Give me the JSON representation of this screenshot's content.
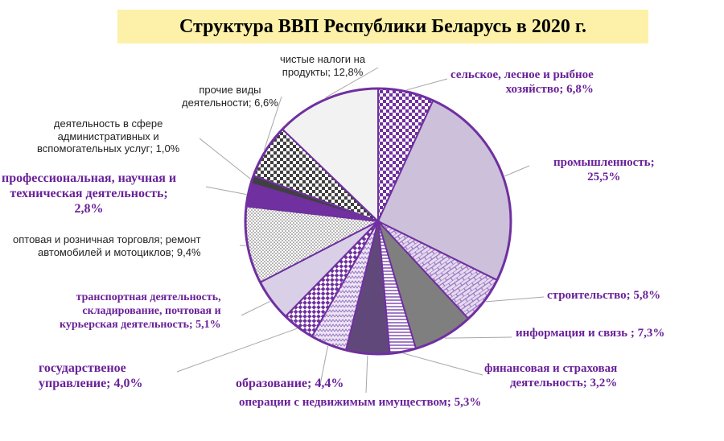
{
  "title": "Структура ВВП Республики Беларусь  в 2020 г.",
  "chart_data": {
    "type": "pie",
    "title": "Структура ВВП Республики Беларусь  в 2020 г.",
    "unit": "%",
    "slices": [
      {
        "label_lines": [
          "сельское, лесное и рыбное",
          "хозяйство; 6,8%"
        ],
        "value": 6.8,
        "color": "#7030a0",
        "fill": "checker"
      },
      {
        "label_lines": [
          "промышленность;",
          "25,5%"
        ],
        "value": 25.5,
        "color": "#ccc0da",
        "fill": "solid"
      },
      {
        "label_lines": [
          "строительство; 5,8%"
        ],
        "value": 5.8,
        "color": "#b494cf",
        "fill": "brick"
      },
      {
        "label_lines": [
          "информация и связь ; 7,3%"
        ],
        "value": 7.3,
        "color": "#7f7f7f",
        "fill": "solid"
      },
      {
        "label_lines": [
          "финансовая и страховая",
          "деятельность; 3,2%"
        ],
        "value": 3.2,
        "color": "#a880c8",
        "fill": "hlines"
      },
      {
        "label_lines": [
          "операции с недвижимым имуществом; 5,3%"
        ],
        "value": 5.3,
        "color": "#60497a",
        "fill": "solid"
      },
      {
        "label_lines": [
          "образование; 4,4%"
        ],
        "value": 4.4,
        "color": "#b494cf",
        "fill": "zigzag"
      },
      {
        "label_lines": [
          "государственое",
          "управление; 4,0%"
        ],
        "value": 4.0,
        "color": "#7030a0",
        "fill": "dchecker"
      },
      {
        "label_lines": [
          "транспортная деятельность,",
          "складирование, почтовая и",
          "курьерская деятельность; 5,1%"
        ],
        "value": 5.1,
        "color": "#d9d0e8",
        "fill": "solid"
      },
      {
        "label_lines": [
          "оптовая и розничная торговля; ремонт",
          "автомобилей и мотоциклов; 9,4%"
        ],
        "value": 9.4,
        "color": "#909090",
        "fill": "dots"
      },
      {
        "label_lines": [
          "профессиональная, научная и",
          "техническая деятельность;",
          "2,8%"
        ],
        "value": 2.8,
        "color": "#7030a0",
        "fill": "solid"
      },
      {
        "label_lines": [
          "деятельность в сфере",
          "административных и",
          "вспомогательных услуг; 1,0%"
        ],
        "value": 1.0,
        "color": "#404040",
        "fill": "solid"
      },
      {
        "label_lines": [
          "прочие виды",
          "деятельности; 6,6%"
        ],
        "value": 6.6,
        "color": "#404040",
        "fill": "checker"
      },
      {
        "label_lines": [
          "чистые налоги на",
          "продукты; 12,8%"
        ],
        "value": 12.8,
        "color": "#f2f2f2",
        "fill": "solid"
      }
    ]
  }
}
